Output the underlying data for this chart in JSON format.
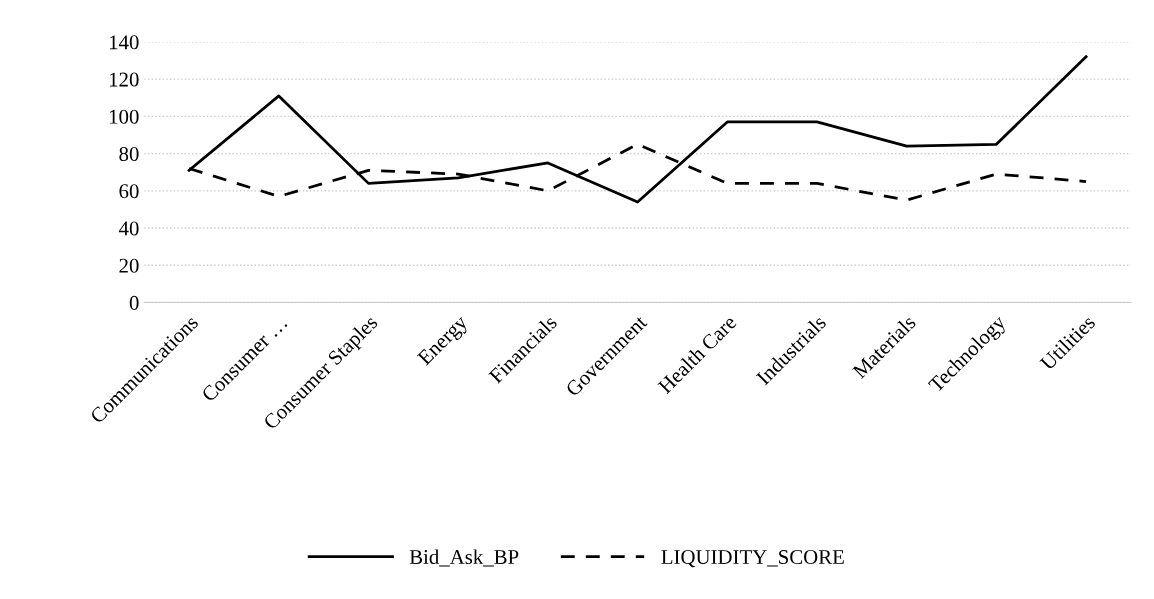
{
  "chart_data": {
    "type": "line",
    "categories": [
      "Communications",
      "Consumer …",
      "Consumer Staples",
      "Energy",
      "Financials",
      "Government",
      "Health Care",
      "Industrials",
      "Materials",
      "Technology",
      "Utilities"
    ],
    "series": [
      {
        "name": "Bid_Ask_BP",
        "color": "#000000",
        "line_style": "solid",
        "values": [
          71,
          111,
          64,
          67,
          75,
          54,
          97,
          97,
          84,
          85,
          132
        ]
      },
      {
        "name": "LIQUIDITY_SCORE",
        "color": "#000000",
        "line_style": "dashed",
        "values": [
          72,
          57,
          71,
          69,
          60,
          85,
          64,
          64,
          55,
          69,
          65
        ]
      }
    ],
    "ylim": [
      0,
      140
    ],
    "yticks": [
      0,
      20,
      40,
      60,
      80,
      100,
      120,
      140
    ],
    "grid": "y",
    "legend": "bottom",
    "marker": "none"
  }
}
